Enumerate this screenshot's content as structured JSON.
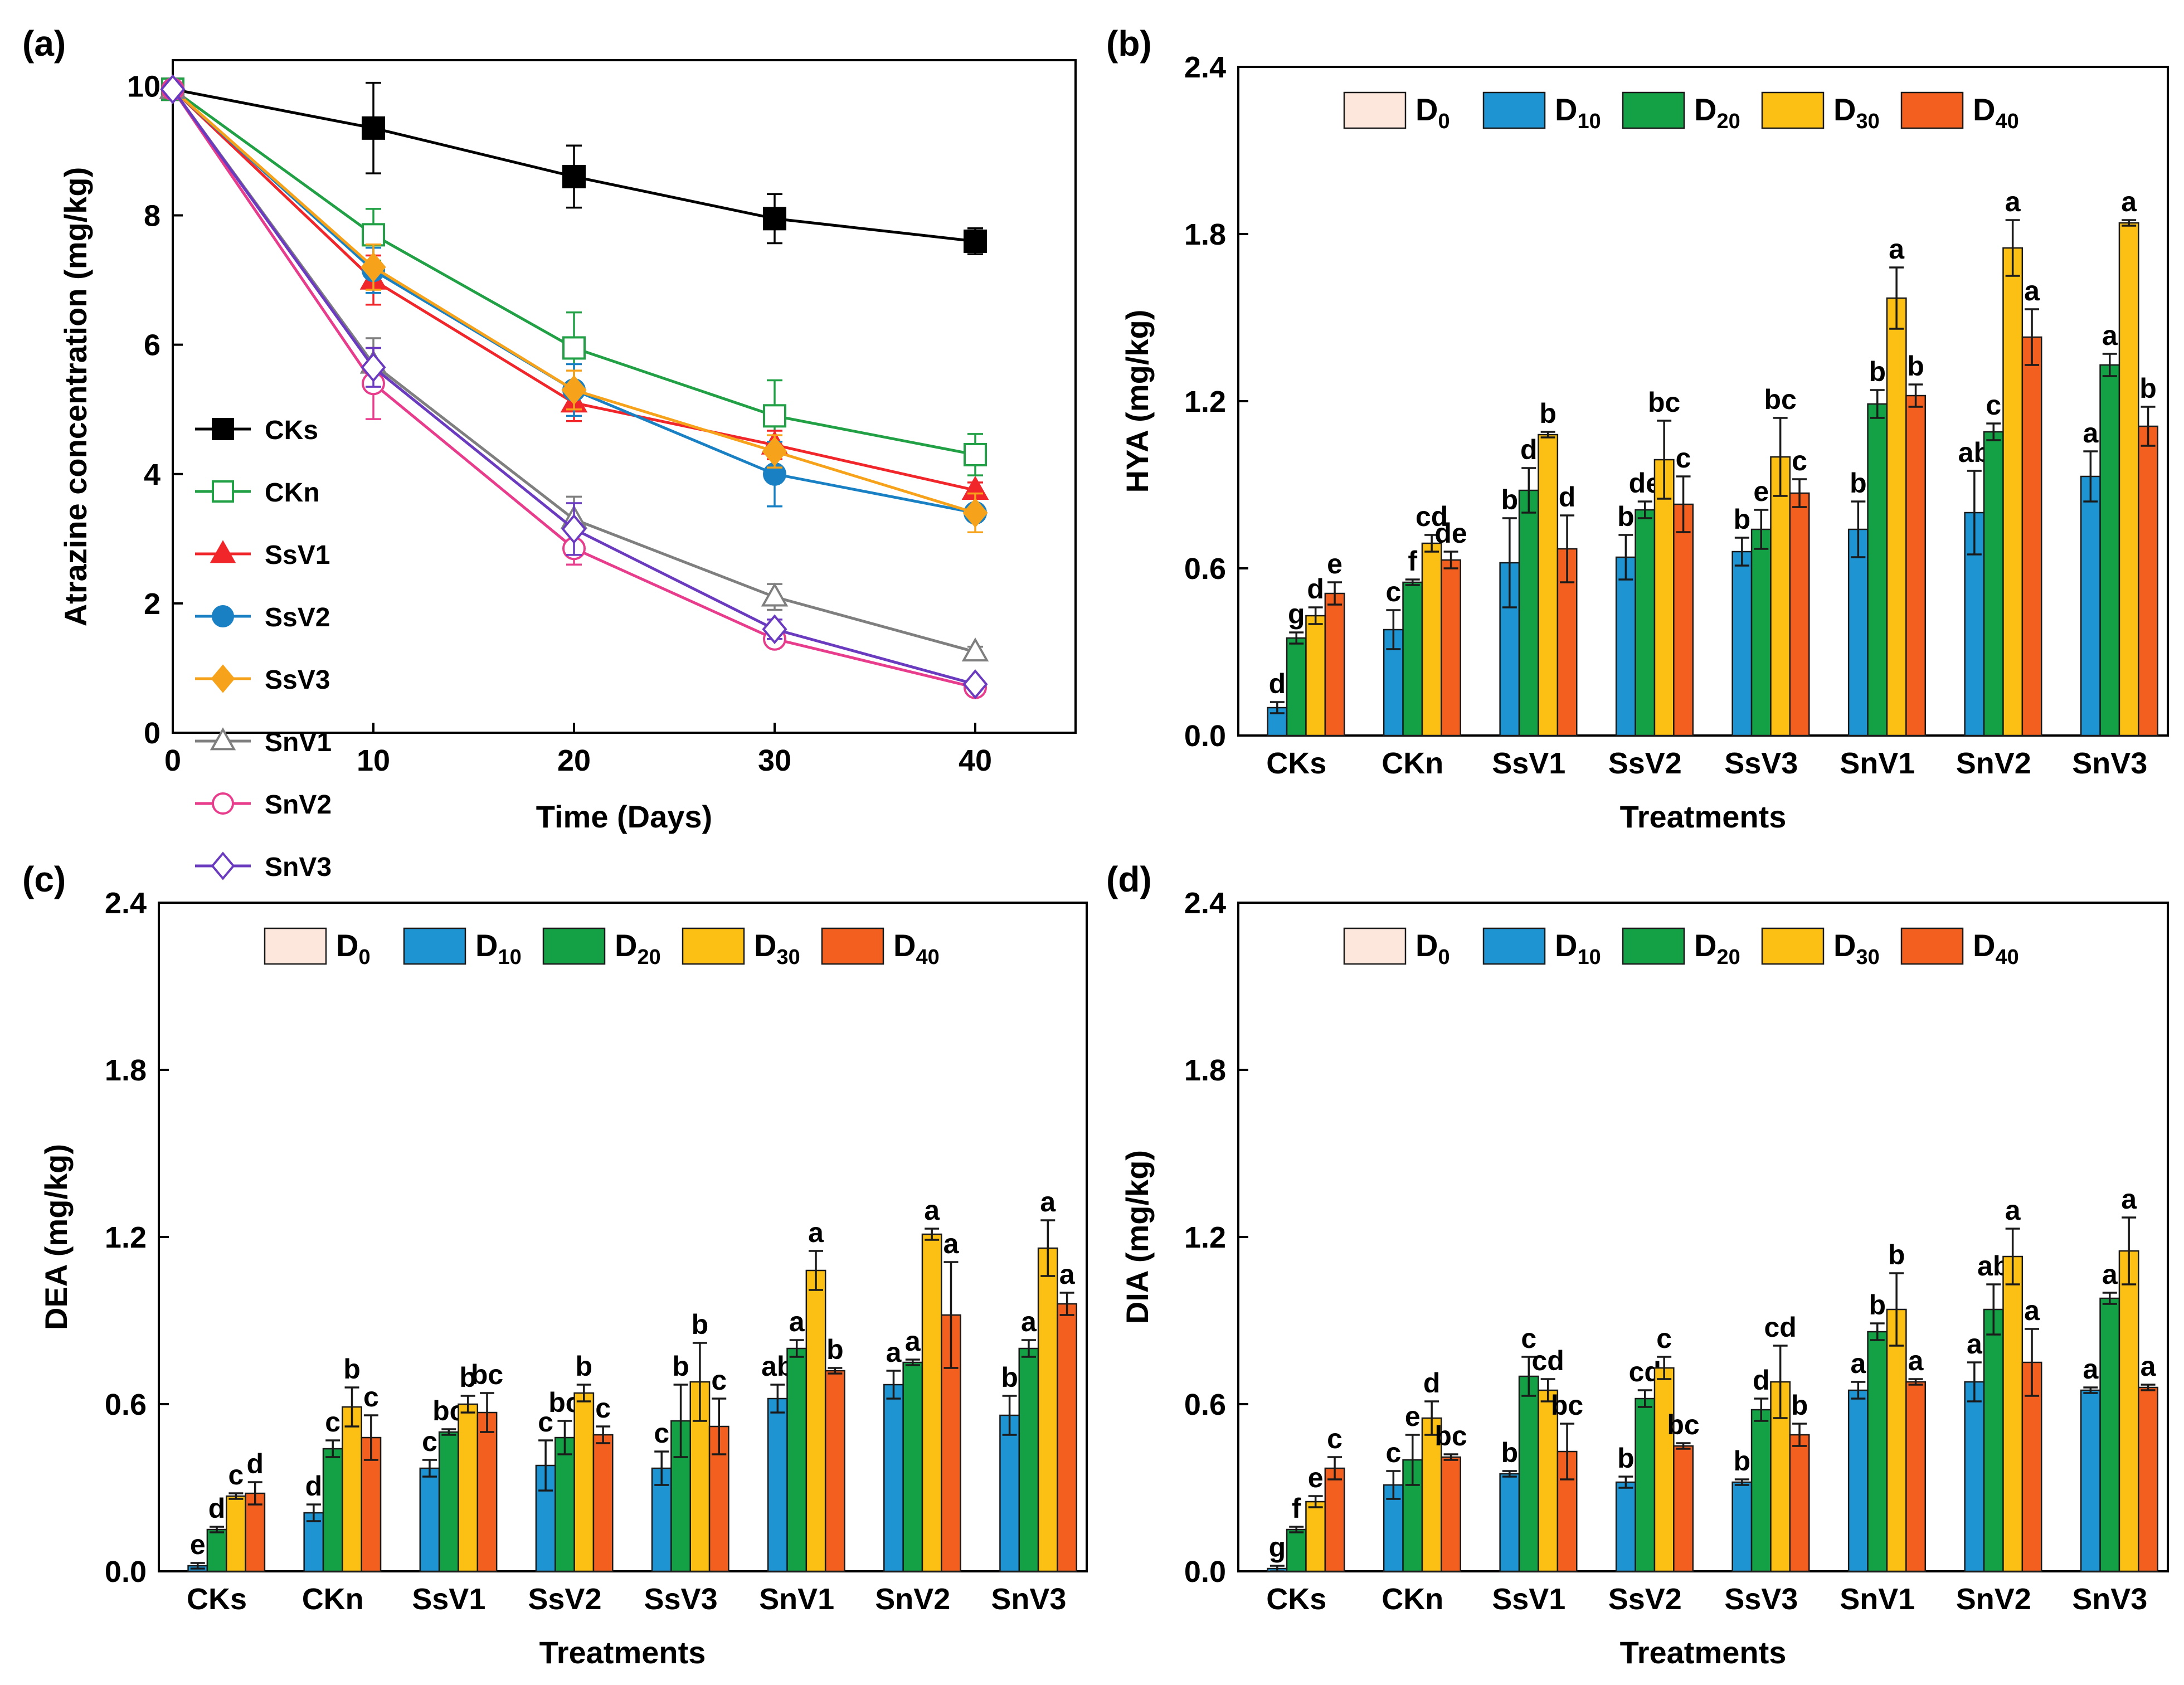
{
  "figure": {
    "panel_labels": [
      "(a)",
      "(b)",
      "(c)",
      "(d)"
    ]
  },
  "chart_data": [
    {
      "panel": "(a)",
      "type": "line",
      "xlabel": "Time (Days)",
      "ylabel": "Atrazine concentration (mg/kg)",
      "xlim": [
        0,
        45
      ],
      "ylim": [
        0,
        10.4
      ],
      "x_ticks": [
        0,
        10,
        20,
        30,
        40
      ],
      "y_ticks": [
        0,
        2,
        4,
        6,
        8,
        10
      ],
      "x": [
        0,
        10,
        20,
        30,
        40
      ],
      "legend_position": "left",
      "series": [
        {
          "name": "CKs",
          "color": "#000000",
          "marker": "square",
          "filled": true,
          "values": [
            9.95,
            9.35,
            8.6,
            7.95,
            7.6
          ],
          "errors": [
            0,
            0.7,
            0.48,
            0.38,
            0.2
          ]
        },
        {
          "name": "CKn",
          "color": "#22a045",
          "marker": "square",
          "filled": false,
          "values": [
            9.95,
            7.7,
            5.95,
            4.9,
            4.3
          ],
          "errors": [
            0,
            0.4,
            0.55,
            0.55,
            0.32
          ]
        },
        {
          "name": "SsV1",
          "color": "#f0262a",
          "marker": "triangle",
          "filled": true,
          "values": [
            9.95,
            7.0,
            5.1,
            4.45,
            3.75
          ],
          "errors": [
            0,
            0.38,
            0.28,
            0.22,
            0.12
          ]
        },
        {
          "name": "SsV2",
          "color": "#1a80c4",
          "marker": "circle",
          "filled": true,
          "values": [
            9.95,
            7.15,
            5.3,
            4.0,
            3.4
          ],
          "errors": [
            0,
            0.35,
            0.4,
            0.5,
            0.12
          ]
        },
        {
          "name": "SsV3",
          "color": "#f6a31b",
          "marker": "diamond",
          "filled": true,
          "values": [
            9.95,
            7.2,
            5.3,
            4.35,
            3.4
          ],
          "errors": [
            0,
            0.35,
            0.3,
            0.25,
            0.3
          ]
        },
        {
          "name": "SnV1",
          "color": "#7f7f7f",
          "marker": "triangle",
          "filled": false,
          "values": [
            9.95,
            5.7,
            3.3,
            2.1,
            1.25
          ],
          "errors": [
            0,
            0.4,
            0.35,
            0.2,
            0.08
          ]
        },
        {
          "name": "SnV2",
          "color": "#e83c8c",
          "marker": "circle",
          "filled": false,
          "values": [
            9.95,
            5.4,
            2.85,
            1.45,
            0.7
          ],
          "errors": [
            0,
            0.55,
            0.25,
            0.1,
            0.05
          ]
        },
        {
          "name": "SnV3",
          "color": "#6a3bbf",
          "marker": "diamond",
          "filled": false,
          "values": [
            9.95,
            5.65,
            3.15,
            1.6,
            0.75
          ],
          "errors": [
            0,
            0.3,
            0.4,
            0.15,
            0.05
          ]
        }
      ]
    },
    {
      "panel": "(b)",
      "type": "bar",
      "ylabel": "HYA (mg/kg)",
      "xlabel": "Treatments",
      "ylim": [
        0,
        2.4
      ],
      "y_ticks": [
        "0.0",
        "0.6",
        "1.2",
        "1.8",
        "2.4"
      ],
      "categories": [
        "CKs",
        "CKn",
        "SsV1",
        "SsV2",
        "SsV3",
        "SnV1",
        "SnV2",
        "SnV3"
      ],
      "legend": [
        {
          "base": "D",
          "sub": "0",
          "color": "#fde6dc"
        },
        {
          "base": "D",
          "sub": "10",
          "color": "#1f94d2"
        },
        {
          "base": "D",
          "sub": "20",
          "color": "#14a044"
        },
        {
          "base": "D",
          "sub": "30",
          "color": "#fcbf13"
        },
        {
          "base": "D",
          "sub": "40",
          "color": "#f35f1e"
        }
      ],
      "series": [
        {
          "name": "D0",
          "values": [
            0,
            0,
            0,
            0,
            0,
            0,
            0,
            0
          ]
        },
        {
          "name": "D10",
          "values": [
            0.1,
            0.38,
            0.62,
            0.64,
            0.66,
            0.74,
            0.8,
            0.93
          ],
          "errors": [
            0.02,
            0.07,
            0.16,
            0.08,
            0.05,
            0.1,
            0.15,
            0.09
          ],
          "labels": [
            "d",
            "c",
            "b",
            "b",
            "b",
            "b",
            "ab",
            "a"
          ]
        },
        {
          "name": "D20",
          "values": [
            0.35,
            0.55,
            0.88,
            0.81,
            0.74,
            1.19,
            1.09,
            1.33
          ],
          "errors": [
            0.02,
            0.01,
            0.08,
            0.03,
            0.07,
            0.05,
            0.03,
            0.04
          ],
          "labels": [
            "g",
            "f",
            "d",
            "de",
            "e",
            "b",
            "c",
            "a"
          ]
        },
        {
          "name": "D30",
          "values": [
            0.43,
            0.69,
            1.08,
            0.99,
            1.0,
            1.57,
            1.75,
            1.84
          ],
          "errors": [
            0.03,
            0.03,
            0.01,
            0.14,
            0.14,
            0.11,
            0.1,
            0.01
          ],
          "labels": [
            "d",
            "cd",
            "b",
            "bc",
            "bc",
            "a",
            "a",
            "a"
          ]
        },
        {
          "name": "D40",
          "values": [
            0.51,
            0.63,
            0.67,
            0.83,
            0.87,
            1.22,
            1.43,
            1.11
          ],
          "errors": [
            0.04,
            0.03,
            0.12,
            0.1,
            0.05,
            0.04,
            0.1,
            0.07
          ],
          "labels": [
            "e",
            "de",
            "d",
            "c",
            "c",
            "b",
            "a",
            "b"
          ]
        }
      ]
    },
    {
      "panel": "(c)",
      "type": "bar",
      "ylabel": "DEA (mg/kg)",
      "xlabel": "Treatments",
      "ylim": [
        0,
        2.4
      ],
      "y_ticks": [
        "0.0",
        "0.6",
        "1.2",
        "1.8",
        "2.4"
      ],
      "categories": [
        "CKs",
        "CKn",
        "SsV1",
        "SsV2",
        "SsV3",
        "SnV1",
        "SnV2",
        "SnV3"
      ],
      "legend": [
        {
          "base": "D",
          "sub": "0",
          "color": "#fde6dc"
        },
        {
          "base": "D",
          "sub": "10",
          "color": "#1f94d2"
        },
        {
          "base": "D",
          "sub": "20",
          "color": "#14a044"
        },
        {
          "base": "D",
          "sub": "30",
          "color": "#fcbf13"
        },
        {
          "base": "D",
          "sub": "40",
          "color": "#f35f1e"
        }
      ],
      "series": [
        {
          "name": "D0",
          "values": [
            0,
            0,
            0,
            0,
            0,
            0,
            0,
            0
          ]
        },
        {
          "name": "D10",
          "values": [
            0.02,
            0.21,
            0.37,
            0.38,
            0.37,
            0.62,
            0.67,
            0.56
          ],
          "errors": [
            0.01,
            0.03,
            0.03,
            0.09,
            0.06,
            0.05,
            0.05,
            0.07
          ],
          "labels": [
            "e",
            "d",
            "c",
            "c",
            "c",
            "ab",
            "a",
            "b"
          ]
        },
        {
          "name": "D20",
          "values": [
            0.15,
            0.44,
            0.5,
            0.48,
            0.54,
            0.8,
            0.75,
            0.8
          ],
          "errors": [
            0.01,
            0.03,
            0.01,
            0.06,
            0.13,
            0.03,
            0.01,
            0.03
          ],
          "labels": [
            "d",
            "c",
            "bc",
            "bc",
            "b",
            "a",
            "a",
            "a"
          ]
        },
        {
          "name": "D30",
          "values": [
            0.27,
            0.59,
            0.6,
            0.64,
            0.68,
            1.08,
            1.21,
            1.16
          ],
          "errors": [
            0.01,
            0.07,
            0.03,
            0.03,
            0.14,
            0.07,
            0.02,
            0.1
          ],
          "labels": [
            "c",
            "b",
            "b",
            "b",
            "b",
            "a",
            "a",
            "a"
          ]
        },
        {
          "name": "D40",
          "values": [
            0.28,
            0.48,
            0.57,
            0.49,
            0.52,
            0.72,
            0.92,
            0.96
          ],
          "errors": [
            0.04,
            0.08,
            0.07,
            0.03,
            0.1,
            0.01,
            0.19,
            0.04
          ],
          "labels": [
            "d",
            "c",
            "bc",
            "c",
            "c",
            "b",
            "a",
            "a"
          ]
        }
      ]
    },
    {
      "panel": "(d)",
      "type": "bar",
      "ylabel": "DIA (mg/kg)",
      "xlabel": "Treatments",
      "ylim": [
        0,
        2.4
      ],
      "y_ticks": [
        "0.0",
        "0.6",
        "1.2",
        "1.8",
        "2.4"
      ],
      "categories": [
        "CKs",
        "CKn",
        "SsV1",
        "SsV2",
        "SsV3",
        "SnV1",
        "SnV2",
        "SnV3"
      ],
      "legend": [
        {
          "base": "D",
          "sub": "0",
          "color": "#fde6dc"
        },
        {
          "base": "D",
          "sub": "10",
          "color": "#1f94d2"
        },
        {
          "base": "D",
          "sub": "20",
          "color": "#14a044"
        },
        {
          "base": "D",
          "sub": "30",
          "color": "#fcbf13"
        },
        {
          "base": "D",
          "sub": "40",
          "color": "#f35f1e"
        }
      ],
      "series": [
        {
          "name": "D0",
          "values": [
            0,
            0,
            0,
            0,
            0,
            0,
            0,
            0
          ]
        },
        {
          "name": "D10",
          "values": [
            0.01,
            0.31,
            0.35,
            0.32,
            0.32,
            0.65,
            0.68,
            0.65
          ],
          "errors": [
            0.01,
            0.05,
            0.01,
            0.02,
            0.01,
            0.03,
            0.07,
            0.01
          ],
          "labels": [
            "g",
            "c",
            "b",
            "b",
            "b",
            "a",
            "a",
            "a"
          ]
        },
        {
          "name": "D20",
          "values": [
            0.15,
            0.4,
            0.7,
            0.62,
            0.58,
            0.86,
            0.94,
            0.98
          ],
          "errors": [
            0.01,
            0.09,
            0.07,
            0.03,
            0.04,
            0.03,
            0.09,
            0.02
          ],
          "labels": [
            "f",
            "e",
            "c",
            "cd",
            "d",
            "b",
            "ab",
            "a"
          ]
        },
        {
          "name": "D30",
          "values": [
            0.25,
            0.55,
            0.65,
            0.73,
            0.68,
            0.94,
            1.13,
            1.15
          ],
          "errors": [
            0.02,
            0.06,
            0.04,
            0.04,
            0.13,
            0.13,
            0.1,
            0.12
          ],
          "labels": [
            "e",
            "d",
            "cd",
            "c",
            "cd",
            "b",
            "a",
            "a"
          ]
        },
        {
          "name": "D40",
          "values": [
            0.37,
            0.41,
            0.43,
            0.45,
            0.49,
            0.68,
            0.75,
            0.66
          ],
          "errors": [
            0.04,
            0.01,
            0.1,
            0.01,
            0.04,
            0.01,
            0.12,
            0.01
          ],
          "labels": [
            "c",
            "bc",
            "bc",
            "bc",
            "b",
            "a",
            "a",
            "a"
          ]
        }
      ]
    }
  ]
}
